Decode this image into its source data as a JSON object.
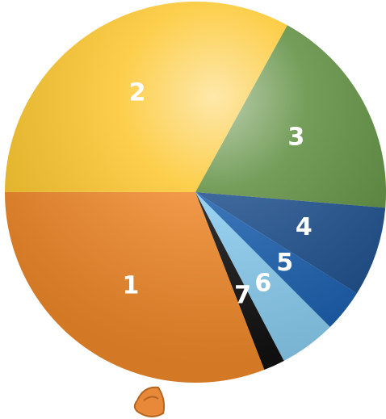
{
  "chart_data": {
    "type": "pie",
    "categories": [
      "1",
      "2",
      "3",
      "4",
      "5",
      "6",
      "7"
    ],
    "values": [
      30.9,
      33.0,
      18.3,
      7.6,
      3.6,
      4.8,
      1.8
    ],
    "colors": [
      "#f0892a",
      "#fcc62c",
      "#5b8c3c",
      "#1d4f8c",
      "#1b5fae",
      "#8acdf0",
      "#111111"
    ]
  }
}
